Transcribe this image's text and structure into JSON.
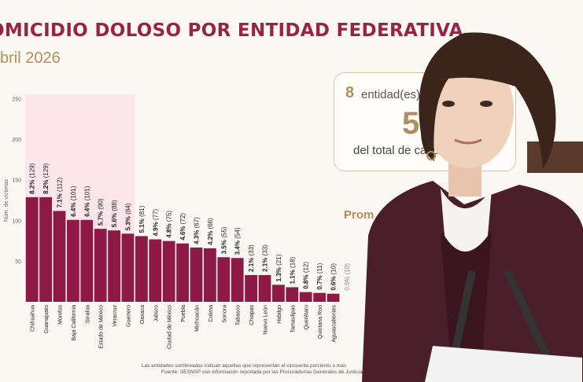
{
  "header": {
    "title": "OMICIDIO DOLOSO POR ENTIDAD FEDERATIVA",
    "subtitle": "bril 2026"
  },
  "chart_data": {
    "type": "bar",
    "ylabel": "Núm. de víctimas",
    "ylim": [
      0,
      250
    ],
    "yticks": [
      50,
      100,
      150,
      200,
      250
    ],
    "highlighted_count": 8,
    "highlight_color": "#fbe6ec",
    "bar_color": "#8c1a44",
    "categories": [
      "Chihuahua",
      "Guanajuato",
      "Morelos",
      "Baja California",
      "Sinaloa",
      "Estado de México",
      "Veracruz",
      "Guerrero",
      "Oaxaca",
      "Jalisco",
      "Ciudad de México",
      "Puebla",
      "Michoacán",
      "Colima",
      "Sonora",
      "Tabasco",
      "Chiapas",
      "Nuevo León",
      "Hidalgo",
      "Tamaulipas",
      "Querétaro",
      "Quintana Roo",
      "Aguascalientes"
    ],
    "values": [
      129,
      129,
      112,
      101,
      101,
      90,
      88,
      84,
      81,
      77,
      75,
      72,
      67,
      66,
      55,
      54,
      33,
      33,
      21,
      18,
      12,
      11,
      10
    ],
    "pct_labels": [
      "8.2%",
      "8.2%",
      "7.1%",
      "6.4%",
      "6.4%",
      "5.7%",
      "5.6%",
      "5.3%",
      "5.1%",
      "4.9%",
      "4.8%",
      "4.6%",
      "4.3%",
      "4.2%",
      "3.5%",
      "3.4%",
      "2.1%",
      "2.1%",
      "1.3%",
      "1.1%",
      "0.8%",
      "0.7%",
      "0.6%"
    ],
    "count_labels": [
      "(129)",
      "(129)",
      "(112)",
      "(101)",
      "(101)",
      "(90)",
      "(88)",
      "(84)",
      "(81)",
      "(77)",
      "(75)",
      "(72)",
      "(67)",
      "(66)",
      "(55)",
      "(54)",
      "(33)",
      "(33)",
      "(21)",
      "(18)",
      "(12)",
      "(11)",
      "(10)"
    ],
    "extra_partial_label": "0.6% (10)"
  },
  "footnotes": {
    "line1": "Las entidades sombreadas indican aquellas que representan el cincuenta porciento o más",
    "line2": "Fuente: SESNSP con información reportada por las Procuradurías Generales de Justicia"
  },
  "card": {
    "count": "8",
    "count_label": "entidad(es)",
    "big_value": "5",
    "footer": "del total de caso"
  },
  "prom_label": "Prom"
}
